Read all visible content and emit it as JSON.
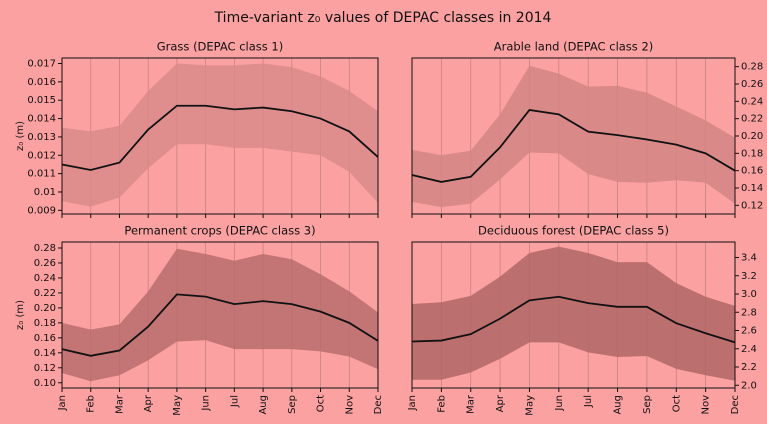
{
  "title": "Time-variant z₀ values of DEPAC classes in 2014",
  "chart_data": [
    {
      "type": "band-line",
      "title": "Grass (DEPAC class 1)",
      "ylabel": "z₀ (m)",
      "yaxis_side": "left",
      "grid": "x",
      "color": "#111111",
      "band_color": "#d98a8a",
      "values": [
        0.0115,
        0.0112,
        0.0116,
        0.0134,
        0.0147,
        0.0147,
        0.0145,
        0.0146,
        0.0144,
        0.014,
        0.0133,
        0.0119
      ],
      "upper": [
        0.0135,
        0.0133,
        0.0136,
        0.0155,
        0.017,
        0.0169,
        0.0169,
        0.017,
        0.0168,
        0.0163,
        0.0155,
        0.0144
      ],
      "lower": [
        0.0095,
        0.0092,
        0.0097,
        0.0113,
        0.0126,
        0.0126,
        0.0124,
        0.0124,
        0.0122,
        0.012,
        0.0111,
        0.0094
      ],
      "ylim": [
        0.0088,
        0.0173
      ],
      "yticks": [
        0.009,
        0.01,
        0.011,
        0.012,
        0.013,
        0.014,
        0.015,
        0.016,
        0.017
      ]
    },
    {
      "type": "band-line",
      "title": "Arable land (DEPAC class 2)",
      "yaxis_side": "right",
      "grid": "x",
      "color": "#111111",
      "band_color": "#d48585",
      "values": [
        0.155,
        0.147,
        0.153,
        0.187,
        0.23,
        0.225,
        0.205,
        0.201,
        0.196,
        0.19,
        0.18,
        0.16
      ],
      "upper": [
        0.184,
        0.178,
        0.183,
        0.225,
        0.281,
        0.272,
        0.257,
        0.258,
        0.25,
        0.234,
        0.218,
        0.198
      ],
      "lower": [
        0.124,
        0.118,
        0.122,
        0.15,
        0.181,
        0.18,
        0.156,
        0.147,
        0.146,
        0.149,
        0.146,
        0.122
      ],
      "ylim": [
        0.11,
        0.29
      ],
      "yticks": [
        0.12,
        0.14,
        0.16,
        0.18,
        {
          "value": 0.2,
          "label": "0.20"
        },
        0.22,
        0.24,
        0.26,
        0.28
      ]
    },
    {
      "type": "band-line",
      "title": "Permanent crops (DEPAC class 3)",
      "ylabel": "z₀ (m)",
      "yaxis_side": "left",
      "grid": "x",
      "color": "#111111",
      "band_color": "#b86c6c",
      "categories": [
        "Jan",
        "Feb",
        "Mar",
        "Apr",
        "May",
        "Jun",
        "Jul",
        "Aug",
        "Sep",
        "Oct",
        "Nov",
        "Dec"
      ],
      "values": [
        0.145,
        0.136,
        0.143,
        0.175,
        0.218,
        0.215,
        0.205,
        0.209,
        0.205,
        0.195,
        0.18,
        0.156
      ],
      "upper": [
        0.18,
        0.171,
        0.178,
        0.222,
        0.279,
        0.272,
        0.263,
        0.272,
        0.265,
        0.245,
        0.222,
        0.194
      ],
      "lower": [
        0.113,
        0.102,
        0.11,
        0.13,
        0.155,
        0.157,
        0.145,
        0.145,
        0.145,
        0.142,
        0.135,
        0.118
      ],
      "ylim": [
        0.093,
        0.288
      ],
      "yticks": [
        {
          "value": 0.1,
          "label": "0.10"
        },
        0.12,
        0.14,
        0.16,
        0.18,
        {
          "value": 0.2,
          "label": "0.20"
        },
        0.22,
        0.24,
        0.26,
        0.28
      ]
    },
    {
      "type": "band-line",
      "title": "Deciduous forest (DEPAC class 5)",
      "yaxis_side": "right",
      "grid": "x",
      "color": "#111111",
      "band_color": "#b06666",
      "categories": [
        "Jan",
        "Feb",
        "Mar",
        "Apr",
        "May",
        "Jun",
        "Jul",
        "Aug",
        "Sep",
        "Oct",
        "Nov",
        "Dec"
      ],
      "values": [
        2.48,
        2.49,
        2.56,
        2.73,
        2.93,
        2.97,
        2.9,
        2.86,
        2.86,
        2.68,
        2.57,
        2.47
      ],
      "upper": [
        2.89,
        2.91,
        2.98,
        3.19,
        3.45,
        3.52,
        3.45,
        3.35,
        3.35,
        3.12,
        2.97,
        2.87
      ],
      "lower": [
        2.06,
        2.06,
        2.14,
        2.29,
        2.47,
        2.47,
        2.36,
        2.31,
        2.32,
        2.18,
        2.11,
        2.05
      ],
      "ylim": [
        1.97,
        3.57
      ],
      "yticks": [
        {
          "value": 2,
          "label": "2.0"
        },
        2.2,
        2.4,
        2.6,
        2.8,
        {
          "value": 3,
          "label": "3.0"
        },
        3.2,
        3.4
      ]
    }
  ]
}
